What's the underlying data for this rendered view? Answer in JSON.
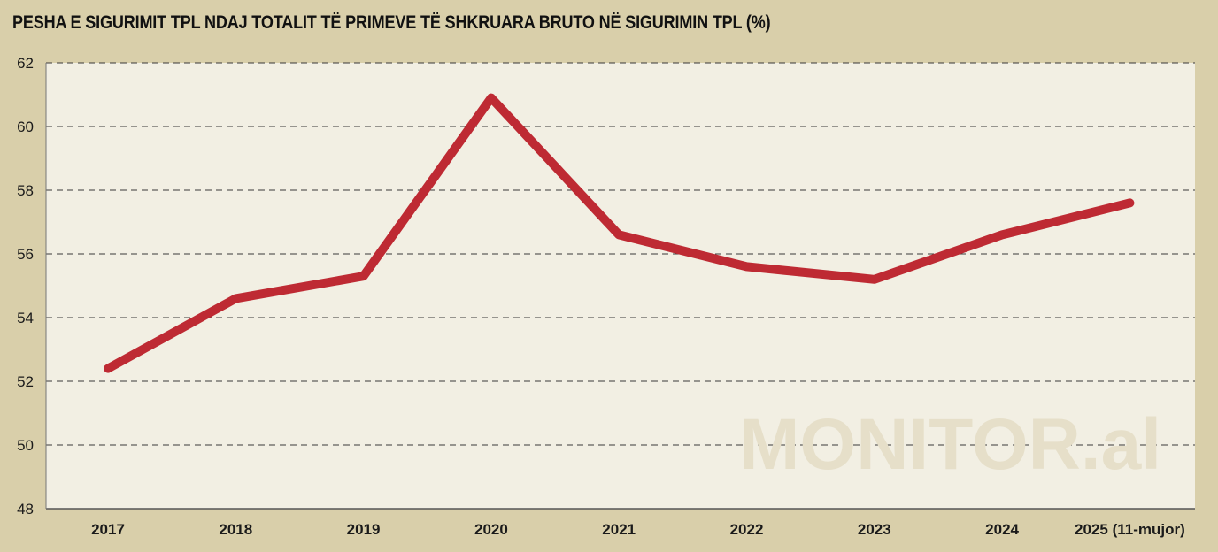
{
  "chart_data": {
    "type": "line",
    "title": "PESHA E SIGURIMIT TPL NDAJ TOTALIT TË PRIMEVE TË SHKRUARA BRUTO NË SIGURIMIN TPL (%)",
    "categories": [
      "2017",
      "2018",
      "2019",
      "2020",
      "2021",
      "2022",
      "2023",
      "2024",
      "2025 (11-mujor)"
    ],
    "series": [
      {
        "values": [
          52.4,
          54.6,
          55.3,
          60.9,
          56.6,
          55.6,
          55.2,
          56.6,
          57.6
        ]
      }
    ],
    "ylim": [
      48,
      62
    ],
    "yticks": [
      48,
      50,
      52,
      54,
      56,
      58,
      60,
      62
    ],
    "xlabel": "",
    "ylabel": "",
    "grid": true,
    "line_color": "#be2a33",
    "background_color": "#f2efe3",
    "frame_color": "#d9cfaa"
  },
  "watermark": "MONITOR.al"
}
